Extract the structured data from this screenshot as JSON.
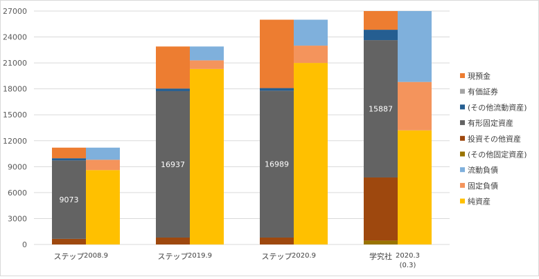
{
  "chart_data": {
    "type": "stacked-bar",
    "ylim": [
      0,
      27000
    ],
    "yticks": [
      0,
      3000,
      6000,
      9000,
      12000,
      15000,
      18000,
      21000,
      24000,
      27000
    ],
    "grid": true,
    "legend_position": "right",
    "groups": [
      {
        "company": "ステップ",
        "period": "2008.9",
        "sub": ""
      },
      {
        "company": "ステップ",
        "period": "2019.9",
        "sub": ""
      },
      {
        "company": "ステップ",
        "period": "2020.9",
        "sub": ""
      },
      {
        "company": "学究社",
        "period": "2020.3",
        "sub": "(0.3)"
      }
    ],
    "asset_series": [
      {
        "name": "(その他固定資産)",
        "color": "#997300",
        "values": [
          0,
          0,
          0,
          450
        ]
      },
      {
        "name": "投資その他資産",
        "color": "#9e480e",
        "values": [
          650,
          800,
          800,
          7300
        ]
      },
      {
        "name": "有形固定資産",
        "color": "#636363",
        "values": [
          9073,
          16937,
          16989,
          15887
        ]
      },
      {
        "name": "(その他流動資産)",
        "color": "#255e91",
        "values": [
          250,
          300,
          300,
          1200
        ]
      },
      {
        "name": "有価証券",
        "color": "#a5a5a5",
        "values": [
          0,
          0,
          0,
          0
        ]
      },
      {
        "name": "現預金",
        "color": "#ed7d31",
        "values": [
          1227,
          4863,
          7911,
          2163
        ]
      }
    ],
    "liability_series": [
      {
        "name": "純資産",
        "color": "#ffc000",
        "values": [
          8600,
          20300,
          21000,
          13200
        ]
      },
      {
        "name": "固定負債",
        "color": "#f4945c",
        "values": [
          1200,
          1000,
          2000,
          5600
        ]
      },
      {
        "name": "流動負債",
        "color": "#7fb0dc",
        "values": [
          1400,
          1600,
          3000,
          8200
        ]
      }
    ],
    "data_labels": [
      {
        "group": 0,
        "series": "有形固定資産",
        "text": "9073"
      },
      {
        "group": 1,
        "series": "有形固定資産",
        "text": "16937"
      },
      {
        "group": 2,
        "series": "有形固定資産",
        "text": "16989"
      },
      {
        "group": 3,
        "series": "有形固定資産",
        "text": "15887"
      }
    ],
    "legend": [
      "現預金",
      "有価証券",
      "(その他流動資産)",
      "有形固定資産",
      "投資その他資産",
      "(その他固定資産)",
      "流動負債",
      "固定負債",
      "純資産"
    ],
    "legend_colors": {
      "現預金": "#ed7d31",
      "有価証券": "#a5a5a5",
      "(その他流動資産)": "#255e91",
      "有形固定資産": "#636363",
      "投資その他資産": "#9e480e",
      "(その他固定資産)": "#997300",
      "流動負債": "#7fb0dc",
      "固定負債": "#f4945c",
      "純資産": "#ffc000"
    }
  }
}
